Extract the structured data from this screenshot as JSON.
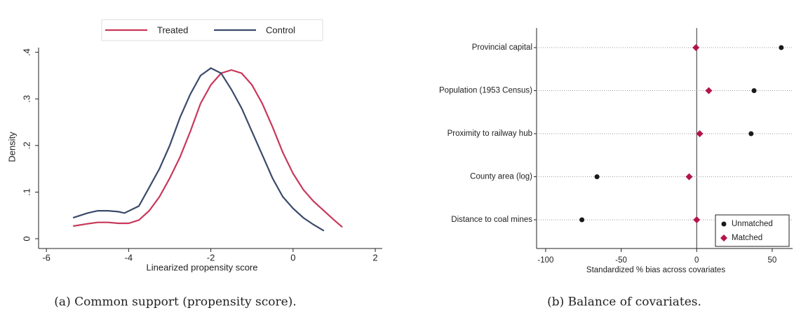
{
  "chart_data": [
    {
      "type": "line",
      "caption": "(a) Common support (propensity score).",
      "xlabel": "Linearized propensity score",
      "ylabel": "Density",
      "xlim": [
        -6.19,
        2.17
      ],
      "ylim": [
        -0.021,
        0.41
      ],
      "xticks": [
        -6,
        -4,
        -2,
        0,
        2
      ],
      "yticks": [
        0,
        {
          "value": 0.1,
          "label": ".1"
        },
        {
          "value": 0.2,
          "label": ".2"
        },
        {
          "value": 0.3,
          "label": ".3"
        },
        {
          "value": 0.4,
          "label": ".4"
        }
      ],
      "legend": "top",
      "series": [
        {
          "name": "Treated",
          "color": "#c8385a",
          "x": [
            -5.35,
            -5,
            -4.75,
            -4.5,
            -4.25,
            -4,
            -3.75,
            -3.5,
            -3.25,
            -3,
            -2.75,
            -2.5,
            -2.25,
            -2,
            -1.75,
            -1.5,
            -1.25,
            -1,
            -0.75,
            -0.5,
            -0.25,
            0,
            0.25,
            0.5,
            0.75,
            1,
            1.2
          ],
          "values": [
            0.027,
            0.032,
            0.035,
            0.035,
            0.033,
            0.033,
            0.04,
            0.06,
            0.09,
            0.13,
            0.175,
            0.23,
            0.29,
            0.33,
            0.355,
            0.362,
            0.355,
            0.33,
            0.29,
            0.24,
            0.185,
            0.14,
            0.105,
            0.08,
            0.06,
            0.04,
            0.025
          ]
        },
        {
          "name": "Control",
          "color": "#3b4a6b",
          "x": [
            -5.35,
            -5,
            -4.75,
            -4.5,
            -4.25,
            -4.1,
            -3.75,
            -3.5,
            -3.25,
            -3,
            -2.75,
            -2.5,
            -2.25,
            -2,
            -1.75,
            -1.5,
            -1.25,
            -1,
            -0.75,
            -0.5,
            -0.25,
            0,
            0.25,
            0.5,
            0.75
          ],
          "values": [
            0.045,
            0.055,
            0.06,
            0.06,
            0.058,
            0.055,
            0.07,
            0.11,
            0.15,
            0.2,
            0.26,
            0.31,
            0.35,
            0.366,
            0.355,
            0.32,
            0.28,
            0.23,
            0.18,
            0.13,
            0.09,
            0.065,
            0.045,
            0.03,
            0.017
          ]
        }
      ]
    },
    {
      "type": "dot",
      "caption": "(b) Balance of covariates.",
      "xlabel": "Standardized % bias across covariates",
      "xlim": [
        -106,
        63.5
      ],
      "xticks": [
        -100,
        -50,
        0,
        50
      ],
      "legend": "lower right",
      "categories": [
        "Provincial capital",
        "Population (1953 Census)",
        "Proximity to railway hub",
        "County area (log)",
        "Distance to coal mines"
      ],
      "series": [
        {
          "name": "Unmatched",
          "color": "#1a1a1a",
          "marker": "circle",
          "values": [
            56,
            38,
            36,
            -66,
            -76
          ]
        },
        {
          "name": "Matched",
          "color": "#b5144a",
          "marker": "diamond",
          "values": [
            -0.5,
            8,
            2,
            -5,
            0
          ]
        }
      ]
    }
  ]
}
